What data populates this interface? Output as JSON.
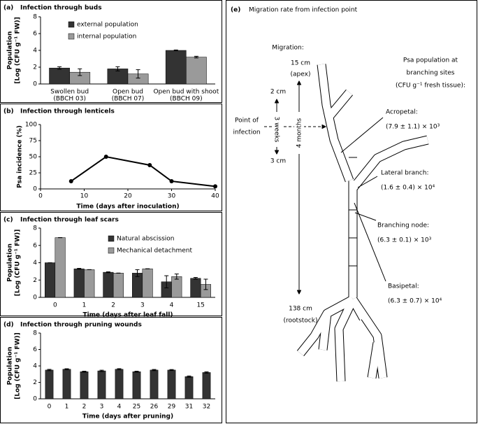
{
  "chart_data": [
    {
      "type": "bar",
      "panel": "(a)",
      "title": "Infection through buds",
      "ylabel": [
        "Population",
        "[Log (CFU g⁻¹ FW)]"
      ],
      "categories": [
        "Swollen bud",
        "Open bud",
        "Open bud with shoot"
      ],
      "category_sublabels": [
        "(BBCH 03)",
        "(BBCH 07)",
        "(BBCH 09)"
      ],
      "series": [
        {
          "name": "external population",
          "color": "#333333",
          "values": [
            1.9,
            1.8,
            4.0
          ],
          "errors": [
            0.15,
            0.25,
            0.05
          ]
        },
        {
          "name": "internal population",
          "color": "#9a9a9a",
          "values": [
            1.4,
            1.2,
            3.2
          ],
          "errors": [
            0.4,
            0.5,
            0.1
          ]
        }
      ],
      "ylim": [
        0,
        8
      ],
      "yticks": [
        0,
        2,
        4,
        6,
        8
      ]
    },
    {
      "type": "line",
      "panel": "(b)",
      "title": "Infection through lenticels",
      "ylabel": "Psa incidence (%)",
      "xlabel": "Time (days after inoculation)",
      "x": [
        7,
        15,
        25,
        30,
        40
      ],
      "y": [
        12,
        50,
        37,
        12,
        4
      ],
      "color": "#000000",
      "xlim": [
        0,
        40
      ],
      "xticks": [
        0,
        10,
        20,
        30,
        40
      ],
      "ylim": [
        0,
        100
      ],
      "yticks": [
        0,
        25,
        50,
        75,
        100
      ]
    },
    {
      "type": "bar",
      "panel": "(c)",
      "title": "Infection through leaf scars",
      "ylabel": [
        "Population",
        "[Log (CFU g⁻¹ FW)]"
      ],
      "xlabel": "Time (days after leaf fall)",
      "categories": [
        "0",
        "1",
        "2",
        "3",
        "4",
        "15"
      ],
      "series": [
        {
          "name": "Natural abscission",
          "color": "#333333",
          "values": [
            4.0,
            3.3,
            2.9,
            2.8,
            1.8,
            2.2
          ],
          "errors": [
            0,
            0.05,
            0.05,
            0.4,
            0.7,
            0.1
          ]
        },
        {
          "name": "Mechanical detachment",
          "color": "#9a9a9a",
          "values": [
            6.9,
            3.2,
            2.8,
            3.3,
            2.4,
            1.5
          ],
          "errors": [
            0,
            0,
            0,
            0,
            0.3,
            0.6
          ]
        }
      ],
      "ylim": [
        0,
        8
      ],
      "yticks": [
        0,
        2,
        4,
        6,
        8
      ]
    },
    {
      "type": "bar",
      "panel": "(d)",
      "title": "Infection through pruning wounds",
      "ylabel": [
        "Population",
        "[Log (CFU g⁻¹ FW)]"
      ],
      "xlabel": "Time (days after pruning)",
      "categories": [
        "0",
        "1",
        "2",
        "3",
        "4",
        "25",
        "26",
        "29",
        "31",
        "32"
      ],
      "values": [
        3.5,
        3.6,
        3.3,
        3.4,
        3.6,
        3.3,
        3.5,
        3.5,
        2.7,
        3.2
      ],
      "errors": [
        0.08,
        0.06,
        0.06,
        0.08,
        0.07,
        0.06,
        0.07,
        0.06,
        0.08,
        0.08
      ],
      "color": "#333333",
      "ylim": [
        0,
        8
      ],
      "yticks": [
        0,
        2,
        4,
        6,
        8
      ]
    }
  ],
  "diagram": {
    "panel": "(e)",
    "title": "Migration rate from infection point",
    "migration": "Migration:",
    "apex": [
      "15 cm",
      "(apex)"
    ],
    "short_top": "2 cm",
    "weeks": "3 weeks",
    "short_bottom": "3 cm",
    "months": "4 months",
    "point": [
      "Point of",
      "infection"
    ],
    "root": [
      "138 cm",
      "(rootstock)"
    ],
    "population_heading": [
      "Psa population at",
      "branching sites",
      "(CFU g⁻¹ fresh tissue):"
    ],
    "sites": [
      {
        "name": "Acropetal:",
        "value": "(7.9 ± 1.1) × 10³"
      },
      {
        "name": "Lateral branch:",
        "value": "(1.6 ± 0.4) × 10⁴"
      },
      {
        "name": "Branching node:",
        "value": "(6.3 ± 0.1) × 10³"
      },
      {
        "name": "Basipetal:",
        "value": "(6.3 ± 0.7) × 10⁴"
      }
    ]
  }
}
